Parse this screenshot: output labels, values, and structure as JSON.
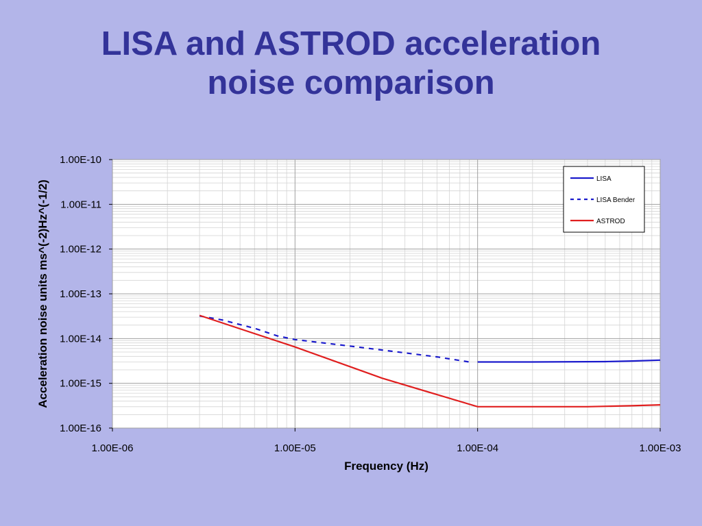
{
  "title": {
    "line1": "LISA and ASTROD acceleration",
    "line2": "noise comparison"
  },
  "colors": {
    "background": "#b3b5e9",
    "title": "#333399",
    "lisa": "#1a1acc",
    "astrod": "#e01e1e"
  },
  "chart_data": {
    "type": "line",
    "xscale": "log",
    "yscale": "log",
    "xlim": [
      1e-06,
      0.001
    ],
    "ylim": [
      1e-16,
      1e-10
    ],
    "xlabel": "Frequency (Hz)",
    "ylabel": "Acceleration noise units ms^(-2)Hz^(-1/2)",
    "xticks": [
      "1.00E-06",
      "1.00E-05",
      "1.00E-04",
      "1.00E-03"
    ],
    "yticks": [
      "1.00E-16",
      "1.00E-15",
      "1.00E-14",
      "1.00E-13",
      "1.00E-12",
      "1.00E-11",
      "1.00E-10"
    ],
    "grid": true,
    "legend_position": "top-right",
    "series": [
      {
        "name": "LISA",
        "style": "solid",
        "color": "#1a1acc",
        "x": [
          0.0001,
          0.0002,
          0.0005,
          0.0007,
          0.001
        ],
        "y": [
          3e-15,
          3e-15,
          3.05e-15,
          3.15e-15,
          3.3e-15
        ]
      },
      {
        "name": "LISA Bender",
        "style": "dashed",
        "color": "#1a1acc",
        "x": [
          3e-06,
          4e-06,
          6e-06,
          8e-06,
          1e-05,
          2e-05,
          4e-05,
          6e-05,
          9e-05
        ],
        "y": [
          3.2e-14,
          2.6e-14,
          1.7e-14,
          1.15e-14,
          9.5e-15,
          6.8e-15,
          4.8e-15,
          3.9e-15,
          3e-15
        ]
      },
      {
        "name": "ASTROD",
        "style": "solid",
        "color": "#e01e1e",
        "x": [
          3e-06,
          1e-05,
          3e-05,
          0.0001,
          0.0002,
          0.0004,
          0.0007,
          0.001
        ],
        "y": [
          3.3e-14,
          6.5e-15,
          1.3e-15,
          3e-16,
          3e-16,
          3e-16,
          3.15e-16,
          3.3e-16
        ]
      }
    ]
  }
}
